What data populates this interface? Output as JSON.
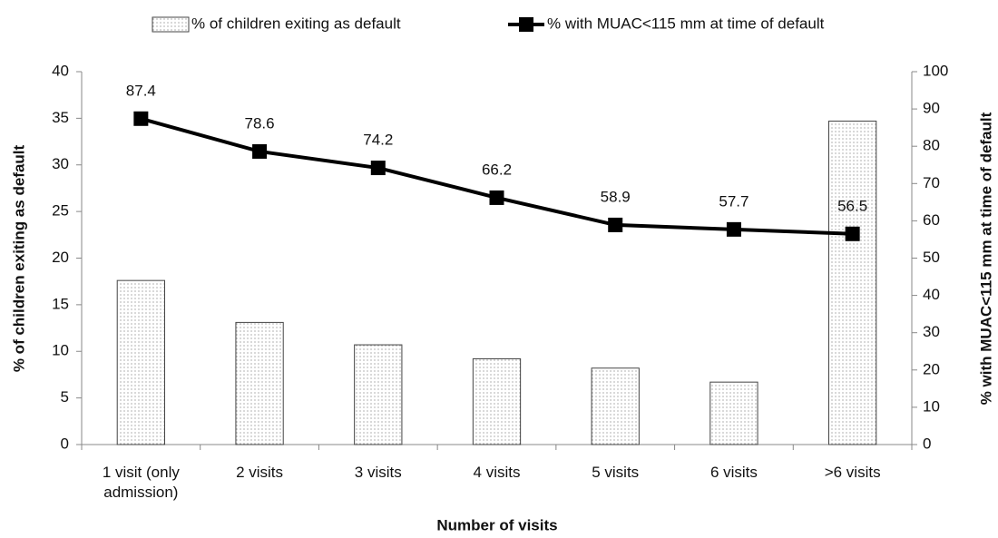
{
  "chart_data": {
    "type": "bar",
    "xlabel": "Number of visits",
    "ylabel": "% of children exiting as default",
    "y2label": "% with MUAC<115 mm at time of default",
    "categories": [
      "1 visit (only admission)",
      "2 visits",
      "3 visits",
      "4 visits",
      "5 visits",
      "6 visits",
      ">6 visits"
    ],
    "series": [
      {
        "name": "% of children exiting as default",
        "type": "bar",
        "pattern": "dots",
        "color": "#7a7a7a",
        "values": [
          17.6,
          13.1,
          10.7,
          9.2,
          8.2,
          6.7,
          34.7
        ]
      },
      {
        "name": "% with MUAC<115 mm at time of default",
        "type": "line",
        "axis": "y2",
        "color": "#000000",
        "values": [
          87.4,
          78.6,
          74.2,
          66.2,
          58.9,
          57.7,
          56.5
        ]
      }
    ],
    "ylim": [
      0,
      40
    ],
    "yticks": [
      0,
      5,
      10,
      15,
      20,
      25,
      30,
      35,
      40
    ],
    "y2lim": [
      0,
      100
    ],
    "y2ticks": [
      0,
      10,
      20,
      30,
      40,
      50,
      60,
      70,
      80,
      90,
      100
    ],
    "grid": false,
    "legend": "top"
  }
}
